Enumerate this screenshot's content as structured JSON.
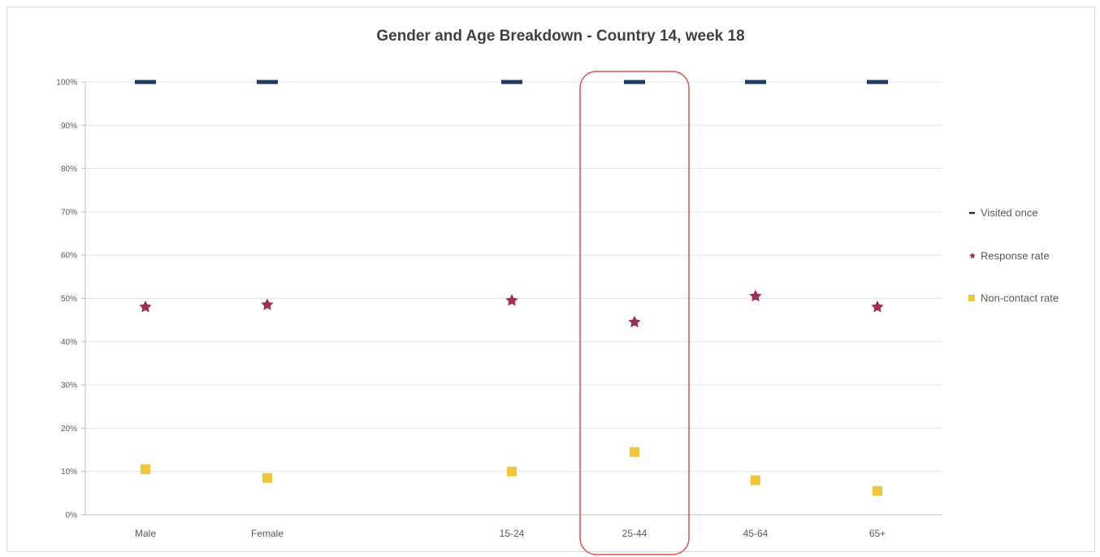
{
  "chart_data": {
    "type": "scatter",
    "title": "Gender and Age Breakdown - Country 14, week 18",
    "xlabel": "",
    "ylabel": "",
    "categories": [
      "Male",
      "Female",
      "15-24",
      "25-44",
      "45-64",
      "65+"
    ],
    "y_ticks": [
      "0%",
      "10%",
      "20%",
      "30%",
      "40%",
      "50%",
      "60%",
      "70%",
      "80%",
      "90%",
      "100%"
    ],
    "ylim": [
      0,
      100
    ],
    "grid": true,
    "legend_position": "right",
    "highlight_category": "25-44",
    "series": [
      {
        "name": "Visited once",
        "marker": "dash",
        "color": "#1f3864",
        "values": [
          100,
          100,
          100,
          100,
          100,
          100
        ]
      },
      {
        "name": "Response rate",
        "marker": "star",
        "color": "#a0304f",
        "values": [
          48,
          48.5,
          49.5,
          44.5,
          50.5,
          48
        ]
      },
      {
        "name": "Non-contact rate",
        "marker": "square",
        "color": "#f0c73c",
        "values": [
          10.5,
          8.5,
          10,
          14.5,
          8,
          5.5
        ]
      }
    ]
  }
}
